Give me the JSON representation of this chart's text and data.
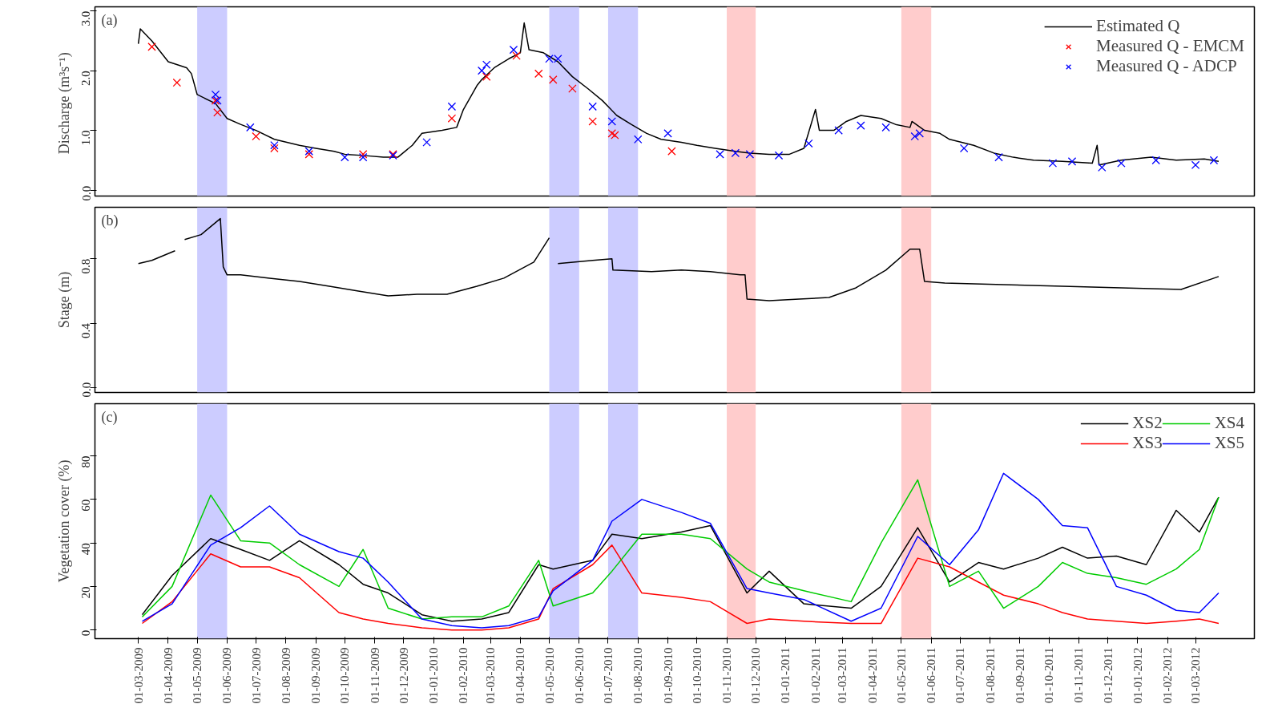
{
  "chart_data": [
    {
      "type": "line",
      "ylabel": "Discharge  (m³s⁻¹)",
      "annotations": [
        "(a)"
      ],
      "xlim": [
        "2009-01-15",
        "2012-05-01"
      ],
      "ylim": [
        -0.1,
        3.07
      ],
      "yticks": [
        {
          "value": 0,
          "label": "0.0"
        },
        {
          "value": 1,
          "label": "1.0"
        },
        {
          "value": 2,
          "label": "2.0"
        },
        {
          "value": 3,
          "label": "3.0"
        }
      ],
      "tick_labels": "y",
      "grid": false,
      "legend": "top right",
      "bands": [
        {
          "axis": "x",
          "from": "2009-05-01",
          "to": "2009-06-01",
          "color": "#ccccff"
        },
        {
          "axis": "x",
          "from": "2010-05-01",
          "to": "2010-06-01",
          "color": "#ccccff"
        },
        {
          "axis": "x",
          "from": "2010-07-01",
          "to": "2010-08-01",
          "color": "#ccccff"
        },
        {
          "axis": "x",
          "from": "2010-11-01",
          "to": "2010-12-01",
          "color": "#ffcccc"
        },
        {
          "axis": "x",
          "from": "2011-05-01",
          "to": "2011-06-01",
          "color": "#ffcccc"
        }
      ],
      "series": [
        {
          "name": "Estimated Q",
          "type": "line",
          "color": "#000000",
          "x": [
            "2009-03-01",
            "2009-03-03",
            "2009-03-15",
            "2009-04-01",
            "2009-04-20",
            "2009-04-25",
            "2009-05-01",
            "2009-05-20",
            "2009-06-01",
            "2009-06-15",
            "2009-07-01",
            "2009-07-20",
            "2009-08-15",
            "2009-09-01",
            "2009-09-20",
            "2009-10-01",
            "2009-10-20",
            "2009-11-10",
            "2009-11-25",
            "2009-12-10",
            "2009-12-20",
            "2010-01-10",
            "2010-01-25",
            "2010-02-01",
            "2010-02-15",
            "2010-02-20",
            "2010-03-05",
            "2010-03-20",
            "2010-04-01",
            "2010-04-05",
            "2010-04-10",
            "2010-04-25",
            "2010-05-10",
            "2010-05-25",
            "2010-06-10",
            "2010-06-25",
            "2010-07-10",
            "2010-07-25",
            "2010-08-10",
            "2010-08-25",
            "2010-09-15",
            "2010-10-01",
            "2010-10-20",
            "2010-11-10",
            "2010-11-25",
            "2010-12-15",
            "2011-01-05",
            "2011-01-20",
            "2011-02-01",
            "2011-02-05",
            "2011-02-20",
            "2011-03-05",
            "2011-03-20",
            "2011-04-10",
            "2011-04-25",
            "2011-05-10",
            "2011-05-12",
            "2011-05-25",
            "2011-06-10",
            "2011-06-20",
            "2011-07-15",
            "2011-08-05",
            "2011-08-25",
            "2011-09-15",
            "2011-10-15",
            "2011-11-15",
            "2011-11-20",
            "2011-11-22",
            "2011-12-15",
            "2012-01-15",
            "2012-02-10",
            "2012-03-10",
            "2012-03-25"
          ],
          "values": [
            2.45,
            2.7,
            2.5,
            2.15,
            2.05,
            1.95,
            1.6,
            1.45,
            1.2,
            1.1,
            1.0,
            0.85,
            0.75,
            0.7,
            0.65,
            0.6,
            0.58,
            0.55,
            0.55,
            0.75,
            0.95,
            1.0,
            1.05,
            1.35,
            1.75,
            1.85,
            2.05,
            2.2,
            2.3,
            2.8,
            2.35,
            2.3,
            2.15,
            1.9,
            1.7,
            1.5,
            1.25,
            1.1,
            0.95,
            0.85,
            0.8,
            0.75,
            0.7,
            0.65,
            0.62,
            0.6,
            0.6,
            0.7,
            1.35,
            1.0,
            1.0,
            1.15,
            1.25,
            1.2,
            1.1,
            1.05,
            1.15,
            1.0,
            0.95,
            0.85,
            0.75,
            0.62,
            0.55,
            0.5,
            0.48,
            0.45,
            0.75,
            0.42,
            0.5,
            0.55,
            0.5,
            0.52,
            0.48
          ]
        },
        {
          "name": "Measured Q - EMCM",
          "type": "scatter",
          "marker": "cross",
          "color": "#ff0000",
          "x": [
            "2009-03-15",
            "2009-04-10",
            "2009-05-20",
            "2009-05-22",
            "2009-07-01",
            "2009-07-20",
            "2009-08-25",
            "2009-10-20",
            "2009-11-20",
            "2010-01-20",
            "2010-02-25",
            "2010-03-28",
            "2010-04-20",
            "2010-05-05",
            "2010-05-25",
            "2010-06-15",
            "2010-07-05",
            "2010-07-08",
            "2010-09-05"
          ],
          "values": [
            2.4,
            1.8,
            1.5,
            1.3,
            0.9,
            0.7,
            0.6,
            0.6,
            0.6,
            1.2,
            1.9,
            2.25,
            1.95,
            1.85,
            1.7,
            1.15,
            0.95,
            0.92,
            0.65
          ]
        },
        {
          "name": "Measured Q - ADCP",
          "type": "scatter",
          "marker": "cross",
          "color": "#0000ff",
          "x": [
            "2009-05-20",
            "2009-05-22",
            "2009-06-25",
            "2009-07-20",
            "2009-08-25",
            "2009-10-01",
            "2009-10-20",
            "2009-11-20",
            "2009-12-25",
            "2010-01-20",
            "2010-02-20",
            "2010-02-25",
            "2010-03-25",
            "2010-05-01",
            "2010-05-10",
            "2010-06-15",
            "2010-07-05",
            "2010-08-01",
            "2010-09-01",
            "2010-10-25",
            "2010-11-10",
            "2010-11-25",
            "2010-12-25",
            "2011-01-25",
            "2011-02-25",
            "2011-03-20",
            "2011-04-15",
            "2011-05-15",
            "2011-05-20",
            "2011-07-05",
            "2011-08-10",
            "2011-10-05",
            "2011-10-25",
            "2011-11-25",
            "2011-12-15",
            "2012-01-20",
            "2012-03-01",
            "2012-03-20"
          ],
          "values": [
            1.6,
            1.5,
            1.05,
            0.75,
            0.65,
            0.55,
            0.55,
            0.58,
            0.8,
            1.4,
            2.0,
            2.1,
            2.35,
            2.2,
            2.2,
            1.4,
            1.15,
            0.85,
            0.95,
            0.6,
            0.62,
            0.6,
            0.58,
            0.78,
            1.0,
            1.08,
            1.05,
            0.9,
            0.95,
            0.7,
            0.55,
            0.45,
            0.48,
            0.38,
            0.45,
            0.5,
            0.42,
            0.5
          ]
        }
      ]
    },
    {
      "type": "line",
      "ylabel": "Stage (m)",
      "annotations": [
        "(b)"
      ],
      "xlim": [
        "2009-01-15",
        "2012-05-01"
      ],
      "ylim": [
        -0.03,
        1.12
      ],
      "yticks": [
        {
          "value": 0,
          "label": "0.0"
        },
        {
          "value": 0.4,
          "label": "0.4"
        },
        {
          "value": 0.8,
          "label": "0.8"
        }
      ],
      "tick_labels": "y",
      "grid": false,
      "bands": [
        {
          "axis": "x",
          "from": "2009-05-01",
          "to": "2009-06-01",
          "color": "#ccccff"
        },
        {
          "axis": "x",
          "from": "2010-05-01",
          "to": "2010-06-01",
          "color": "#ccccff"
        },
        {
          "axis": "x",
          "from": "2010-07-01",
          "to": "2010-08-01",
          "color": "#ccccff"
        },
        {
          "axis": "x",
          "from": "2010-11-01",
          "to": "2010-12-01",
          "color": "#ffcccc"
        },
        {
          "axis": "x",
          "from": "2011-05-01",
          "to": "2011-06-01",
          "color": "#ffcccc"
        }
      ],
      "series": [
        {
          "type": "line",
          "color": "#000000",
          "x": [
            "2009-03-01",
            "2009-03-15",
            "2009-04-08",
            "2009-04-12",
            "2009-04-18",
            "2009-05-05",
            "2009-05-15",
            "2009-05-25",
            "2009-05-28",
            "2009-06-01",
            "2009-06-15",
            "2009-07-15",
            "2009-08-15",
            "2009-09-15",
            "2009-10-15",
            "2009-11-15",
            "2009-12-15",
            "2010-01-15",
            "2010-02-15",
            "2010-03-15",
            "2010-04-15",
            "2010-05-01",
            "2010-05-05",
            "2010-05-10",
            "2010-06-15",
            "2010-07-05",
            "2010-07-06",
            "2010-08-15",
            "2010-09-15",
            "2010-10-15",
            "2010-11-15",
            "2010-11-20",
            "2010-11-22",
            "2010-12-15",
            "2011-01-15",
            "2011-02-15",
            "2011-03-15",
            "2011-04-15",
            "2011-05-10",
            "2011-05-20",
            "2011-05-25",
            "2011-06-15",
            "2011-08-15",
            "2011-10-15",
            "2011-12-15",
            "2012-02-15",
            "2012-03-25"
          ],
          "values": [
            0.77,
            0.79,
            0.85,
            null,
            0.92,
            0.95,
            1.0,
            1.05,
            0.75,
            0.7,
            0.7,
            0.68,
            0.66,
            0.63,
            0.6,
            0.57,
            0.58,
            0.58,
            0.63,
            0.68,
            0.78,
            0.93,
            null,
            0.77,
            0.79,
            0.8,
            0.73,
            0.72,
            0.73,
            0.72,
            0.7,
            0.7,
            0.55,
            0.54,
            0.55,
            0.56,
            0.62,
            0.73,
            0.86,
            0.86,
            0.66,
            0.65,
            0.64,
            0.63,
            0.62,
            0.61,
            0.69
          ]
        }
      ]
    },
    {
      "type": "line",
      "ylabel": "Vegetation cover (%)",
      "annotations": [
        "(c)"
      ],
      "xlim": [
        "2009-01-15",
        "2012-05-01"
      ],
      "ylim": [
        -4,
        104
      ],
      "yticks": [
        0,
        20,
        40,
        60,
        80
      ],
      "grid": false,
      "legend": "top right",
      "xticks": [
        {
          "value": "2009-03-01",
          "label": "01-03-2009"
        },
        {
          "value": "2009-04-01",
          "label": "01-04-2009"
        },
        {
          "value": "2009-05-01",
          "label": "01-05-2009"
        },
        {
          "value": "2009-06-01",
          "label": "01-06-2009"
        },
        {
          "value": "2009-07-01",
          "label": "01-07-2009"
        },
        {
          "value": "2009-08-01",
          "label": "01-08-2009"
        },
        {
          "value": "2009-09-01",
          "label": "01-09-2009"
        },
        {
          "value": "2009-10-01",
          "label": "01-10-2009"
        },
        {
          "value": "2009-11-01",
          "label": "01-11-2009"
        },
        {
          "value": "2009-12-01",
          "label": "01-12-2009"
        },
        {
          "value": "2010-01-01",
          "label": "01-01-2010"
        },
        {
          "value": "2010-02-01",
          "label": "01-02-2010"
        },
        {
          "value": "2010-03-01",
          "label": "01-03-2010"
        },
        {
          "value": "2010-04-01",
          "label": "01-04-2010"
        },
        {
          "value": "2010-05-01",
          "label": "01-05-2010"
        },
        {
          "value": "2010-06-01",
          "label": "01-06-2010"
        },
        {
          "value": "2010-07-01",
          "label": "01-07-2010"
        },
        {
          "value": "2010-08-01",
          "label": "01-08-2010"
        },
        {
          "value": "2010-09-01",
          "label": "01-09-2010"
        },
        {
          "value": "2010-10-01",
          "label": "01-10-2010"
        },
        {
          "value": "2010-11-01",
          "label": "01-11-2010"
        },
        {
          "value": "2010-12-01",
          "label": "01-12-2010"
        },
        {
          "value": "2011-01-01",
          "label": "01-01-2011"
        },
        {
          "value": "2011-02-01",
          "label": "01-02-2011"
        },
        {
          "value": "2011-03-01",
          "label": "01-03-2011"
        },
        {
          "value": "2011-04-01",
          "label": "01-04-2011"
        },
        {
          "value": "2011-05-01",
          "label": "01-05-2011"
        },
        {
          "value": "2011-06-01",
          "label": "01-06-2011"
        },
        {
          "value": "2011-07-01",
          "label": "01-07-2011"
        },
        {
          "value": "2011-08-01",
          "label": "01-08-2011"
        },
        {
          "value": "2011-09-01",
          "label": "01-09-2011"
        },
        {
          "value": "2011-10-01",
          "label": "01-10-2011"
        },
        {
          "value": "2011-11-01",
          "label": "01-11-2011"
        },
        {
          "value": "2011-12-01",
          "label": "01-12-2011"
        },
        {
          "value": "2012-01-01",
          "label": "01-01-2012"
        },
        {
          "value": "2012-02-01",
          "label": "01-02-2012"
        },
        {
          "value": "2012-03-01",
          "label": "01-03-2012"
        }
      ],
      "bands": [
        {
          "axis": "x",
          "from": "2009-05-01",
          "to": "2009-06-01",
          "color": "#ccccff"
        },
        {
          "axis": "x",
          "from": "2010-05-01",
          "to": "2010-06-01",
          "color": "#ccccff"
        },
        {
          "axis": "x",
          "from": "2010-07-01",
          "to": "2010-08-01",
          "color": "#ccccff"
        },
        {
          "axis": "x",
          "from": "2010-11-01",
          "to": "2010-12-01",
          "color": "#ffcccc"
        },
        {
          "axis": "x",
          "from": "2011-05-01",
          "to": "2011-06-01",
          "color": "#ffcccc"
        }
      ],
      "x": [
        "2009-03-05",
        "2009-04-05",
        "2009-05-15",
        "2009-06-15",
        "2009-07-15",
        "2009-08-15",
        "2009-09-25",
        "2009-10-20",
        "2009-11-15",
        "2009-12-20",
        "2010-01-20",
        "2010-02-20",
        "2010-03-20",
        "2010-04-20",
        "2010-05-05",
        "2010-06-15",
        "2010-07-05",
        "2010-08-05",
        "2010-09-15",
        "2010-10-15",
        "2010-11-22",
        "2010-12-15",
        "2011-01-20",
        "2011-03-10",
        "2011-04-10",
        "2011-05-18",
        "2011-06-20",
        "2011-07-20",
        "2011-08-15",
        "2011-09-20",
        "2011-10-15",
        "2011-11-10",
        "2011-12-10",
        "2012-01-10",
        "2012-02-10",
        "2012-03-05",
        "2012-03-25"
      ],
      "series": [
        {
          "name": "XS2",
          "color": "#000000",
          "values": [
            7,
            25,
            42,
            37,
            32,
            41,
            30,
            21,
            17,
            7,
            4,
            5,
            8,
            30,
            28,
            32,
            44,
            42,
            45,
            48,
            17,
            27,
            12,
            10,
            20,
            47,
            22,
            31,
            28,
            33,
            38,
            33,
            34,
            30,
            55,
            45,
            61
          ]
        },
        {
          "name": "XS3",
          "color": "#ff0000",
          "values": [
            3,
            13,
            35,
            29,
            29,
            24,
            8,
            5,
            3,
            1,
            0,
            0,
            1,
            5,
            19,
            30,
            39,
            17,
            15,
            13,
            3,
            5,
            4,
            3,
            3,
            33,
            29,
            22,
            16,
            12,
            8,
            5,
            4,
            3,
            4,
            5,
            3
          ]
        },
        {
          "name": "XS4",
          "color": "#00cc00",
          "values": [
            6,
            20,
            62,
            41,
            40,
            30,
            20,
            37,
            10,
            5,
            6,
            6,
            11,
            32,
            11,
            17,
            27,
            44,
            44,
            42,
            28,
            22,
            18,
            13,
            40,
            69,
            20,
            27,
            10,
            20,
            31,
            26,
            24,
            21,
            28,
            37,
            61
          ]
        },
        {
          "name": "XS5",
          "color": "#0000ff",
          "values": [
            4,
            12,
            39,
            47,
            57,
            44,
            36,
            33,
            22,
            5,
            2,
            1,
            2,
            6,
            18,
            32,
            50,
            60,
            54,
            49,
            19,
            17,
            14,
            4,
            10,
            43,
            30,
            46,
            72,
            60,
            48,
            47,
            20,
            16,
            9,
            8,
            17
          ]
        }
      ]
    }
  ]
}
